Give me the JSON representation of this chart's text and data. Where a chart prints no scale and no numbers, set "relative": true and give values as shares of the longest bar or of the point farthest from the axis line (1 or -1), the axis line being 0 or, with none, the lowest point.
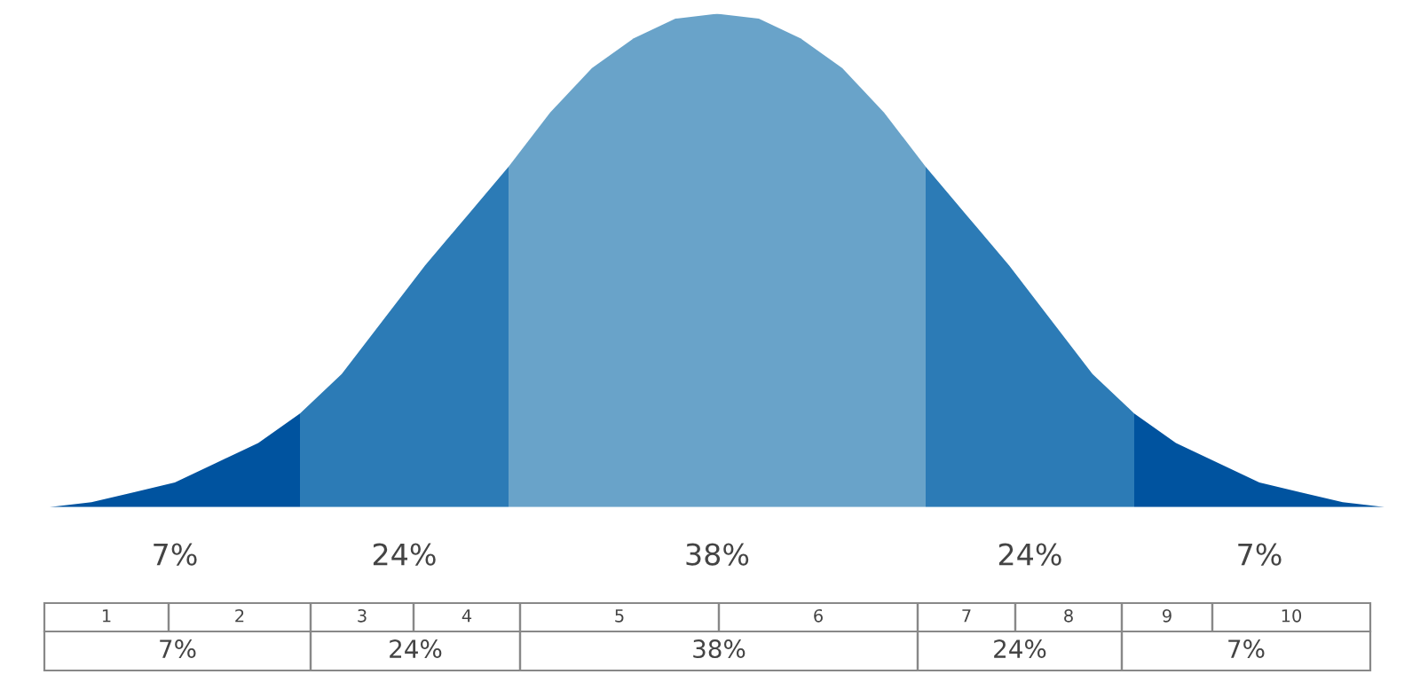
{
  "chart_data": {
    "type": "area",
    "relative": true,
    "tick_labels": false,
    "categories": [
      null,
      null,
      null,
      null,
      null,
      null,
      null,
      null,
      null,
      null,
      null,
      null,
      null,
      null,
      null,
      null,
      null,
      null,
      null,
      null,
      null,
      null,
      null,
      null,
      null,
      null,
      null,
      null,
      null,
      null,
      null,
      null,
      null
    ],
    "series": [
      {
        "color": "#00539f",
        "values": [
          0.0,
          0.01,
          0.03,
          0.05,
          0.09,
          0.13,
          0.19,
          null,
          null,
          null,
          null,
          null,
          null,
          null,
          null,
          null,
          null,
          null,
          null,
          null,
          null,
          null,
          null,
          null,
          null,
          null,
          null,
          null,
          null,
          null,
          null,
          null,
          null
        ]
      },
      {
        "color": "#2c7bb6",
        "values": [
          null,
          null,
          null,
          null,
          null,
          null,
          0.19,
          0.27,
          0.38,
          0.49,
          0.59,
          0.69,
          null,
          null,
          null,
          null,
          null,
          null,
          null,
          null,
          null,
          null,
          null,
          null,
          null,
          null,
          null,
          null,
          null,
          null,
          null,
          null,
          null
        ]
      },
      {
        "color": "#69a3c9",
        "values": [
          null,
          null,
          null,
          null,
          null,
          null,
          null,
          null,
          null,
          null,
          null,
          0.69,
          0.8,
          0.89,
          0.95,
          0.99,
          1.0,
          0.99,
          0.95,
          0.89,
          0.8,
          0.69,
          null,
          null,
          null,
          null,
          null,
          null,
          null,
          null,
          null,
          null,
          null
        ]
      },
      {
        "color": "#2c7bb6",
        "values": [
          null,
          null,
          null,
          null,
          null,
          null,
          null,
          null,
          null,
          null,
          null,
          null,
          null,
          null,
          null,
          null,
          null,
          null,
          null,
          null,
          null,
          0.69,
          0.59,
          0.49,
          0.38,
          0.27,
          0.19,
          null,
          null,
          null,
          null,
          null,
          null
        ]
      },
      {
        "color": "#00539f",
        "values": [
          null,
          null,
          null,
          null,
          null,
          null,
          null,
          null,
          null,
          null,
          null,
          null,
          null,
          null,
          null,
          null,
          null,
          null,
          null,
          null,
          null,
          null,
          null,
          null,
          null,
          null,
          0.19,
          0.13,
          0.09,
          0.05,
          0.03,
          0.01,
          0.0
        ]
      }
    ],
    "annotations": [
      "7%",
      "24%",
      "38%",
      "24%",
      "7%",
      "1",
      "2",
      "3",
      "4",
      "5",
      "6",
      "7",
      "8",
      "9",
      "10",
      "7%",
      "24%",
      "38%",
      "24%",
      "7%"
    ]
  }
}
